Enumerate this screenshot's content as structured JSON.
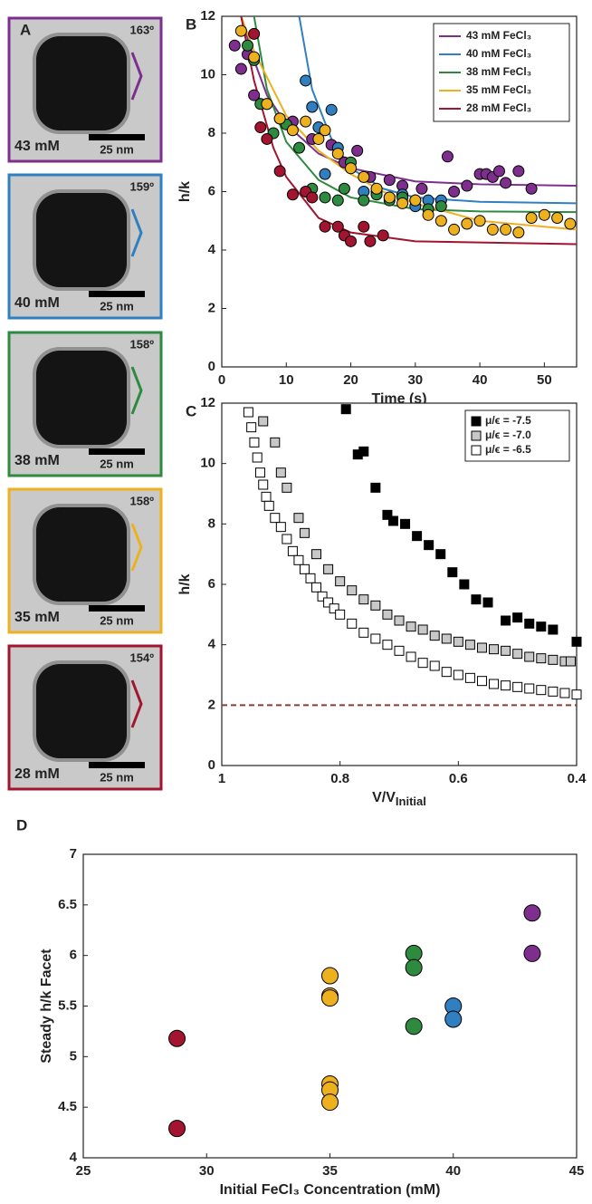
{
  "panel_a": {
    "label": "A",
    "tiles": [
      {
        "concentration": "43 mM",
        "angle": "163º",
        "scale_bar": "25 nm",
        "color": "#7e2f8e"
      },
      {
        "concentration": "40 mM",
        "angle": "159º",
        "scale_bar": "25 nm",
        "color": "#2f7fc1"
      },
      {
        "concentration": "38 mM",
        "angle": "158º",
        "scale_bar": "25 nm",
        "color": "#2d8a3e"
      },
      {
        "concentration": "35 mM",
        "angle": "158º",
        "scale_bar": "25 nm",
        "color": "#edb120"
      },
      {
        "concentration": "28 mM",
        "angle": "154º",
        "scale_bar": "25 nm",
        "color": "#a2142f"
      }
    ]
  },
  "chart_data": [
    {
      "type": "scatter",
      "panel": "B",
      "marker": "circle",
      "xlabel": "Time (s)",
      "ylabel": "h/k",
      "xlim": [
        0,
        55
      ],
      "ylim": [
        0,
        12
      ],
      "xticks": [
        0,
        10,
        20,
        30,
        40,
        50
      ],
      "yticks": [
        0,
        2,
        4,
        6,
        8,
        10,
        12
      ],
      "legend": "upper right",
      "series": [
        {
          "name": "43 mM FeCl₃",
          "color": "#7e2f8e",
          "x": [
            2,
            3,
            4,
            5,
            7,
            9,
            11,
            14,
            17,
            19,
            21,
            23,
            26,
            28,
            31,
            35,
            36,
            38,
            40,
            41,
            42,
            43,
            44,
            46,
            48
          ],
          "values": [
            11,
            10.2,
            10.7,
            9.3,
            9,
            8.5,
            8.4,
            7.8,
            7.6,
            7,
            7.4,
            6.5,
            6.4,
            6.2,
            6.1,
            7.2,
            6,
            6.2,
            6.6,
            6.6,
            6.5,
            6.7,
            6.3,
            6.7,
            6.1
          ],
          "fit": {
            "x": [
              3,
              5,
              7,
              10,
              15,
              20,
              30,
              40,
              55
            ],
            "values": [
              12,
              10.5,
              9.3,
              8.3,
              7.3,
              6.8,
              6.35,
              6.25,
              6.2
            ]
          }
        },
        {
          "name": "40 mM FeCl₃",
          "color": "#2f7fc1",
          "x": [
            13,
            14,
            15,
            16,
            17,
            18,
            20,
            22,
            24,
            26,
            28,
            30,
            32,
            34
          ],
          "values": [
            9.8,
            8.9,
            8.2,
            6.6,
            8.8,
            7.5,
            6.8,
            6,
            6,
            5.8,
            5.9,
            5.5,
            5.7,
            5.7
          ],
          "fit": {
            "x": [
              12,
              14,
              17,
              20,
              25,
              30,
              40,
              55
            ],
            "values": [
              12,
              9.5,
              7.8,
              6.8,
              6.1,
              5.8,
              5.65,
              5.6
            ]
          }
        },
        {
          "name": "38 mM FeCl₃",
          "color": "#2d8a3e",
          "x": [
            4,
            5,
            6,
            8,
            10,
            12,
            14,
            16,
            18,
            19,
            20,
            22,
            24,
            26,
            28,
            30,
            32,
            34
          ],
          "values": [
            11,
            10.5,
            9,
            8,
            8.3,
            7.5,
            6.1,
            5.8,
            5.7,
            6.1,
            7,
            5.7,
            5.9,
            5.7,
            5.8,
            5.7,
            5.4,
            5.5
          ],
          "fit": {
            "x": [
              5,
              7,
              10,
              15,
              20,
              30,
              40,
              55
            ],
            "values": [
              12,
              9.5,
              7.7,
              6.4,
              5.8,
              5.4,
              5.32,
              5.3
            ]
          }
        },
        {
          "name": "35 mM FeCl₃",
          "color": "#edb120",
          "x": [
            3,
            5,
            7,
            9,
            11,
            13,
            15,
            16,
            18,
            20,
            22,
            24,
            26,
            28,
            30,
            32,
            34,
            36,
            38,
            40,
            42,
            44,
            46,
            48,
            50,
            52,
            54
          ],
          "values": [
            11.5,
            10.6,
            9,
            8.5,
            8.1,
            8.4,
            7.8,
            8.1,
            7.3,
            6.8,
            6.5,
            6.1,
            5.8,
            5.6,
            5.7,
            5.2,
            5,
            4.7,
            4.9,
            5,
            4.7,
            4.7,
            4.6,
            5.1,
            5.2,
            5.1,
            4.9
          ],
          "fit": {
            "x": [
              3,
              5,
              10,
              15,
              20,
              25,
              30,
              40,
              55
            ],
            "values": [
              12,
              10.8,
              8.6,
              7.4,
              6.6,
              6,
              5.6,
              5,
              4.7
            ]
          }
        },
        {
          "name": "28 mM FeCl₃",
          "color": "#a2142f",
          "x": [
            5,
            6,
            7,
            9,
            11,
            13,
            14,
            16,
            18,
            19,
            20,
            22,
            23,
            25
          ],
          "values": [
            11.4,
            8.2,
            7.8,
            6.7,
            5.9,
            6,
            5.8,
            4.8,
            4.8,
            4.5,
            4.3,
            4.8,
            4.3,
            4.5
          ],
          "fit": {
            "x": [
              3,
              5,
              8,
              10,
              15,
              20,
              30,
              55
            ],
            "values": [
              12,
              9.8,
              7.5,
              6.5,
              5.1,
              4.6,
              4.3,
              4.2
            ]
          }
        }
      ]
    },
    {
      "type": "scatter",
      "panel": "C",
      "marker": "square",
      "xlabel": "V/V",
      "xlabel_subscript": "Initial",
      "ylabel": "h/k",
      "xlim": [
        1,
        0.4
      ],
      "ylim": [
        0,
        12
      ],
      "xticks": [
        1,
        0.8,
        0.6,
        0.4
      ],
      "yticks": [
        0,
        2,
        4,
        6,
        8,
        10,
        12
      ],
      "legend": "upper right",
      "reference_line": {
        "y": 2,
        "color": "#8b3a3a"
      },
      "series": [
        {
          "name": "μ/ϵ = -7.5",
          "color": "#000000",
          "x": [
            0.79,
            0.77,
            0.76,
            0.74,
            0.72,
            0.71,
            0.69,
            0.67,
            0.65,
            0.63,
            0.61,
            0.59,
            0.57,
            0.55,
            0.52,
            0.5,
            0.48,
            0.46,
            0.44,
            0.4
          ],
          "values": [
            11.8,
            10.3,
            10.4,
            9.2,
            8.3,
            8.1,
            8,
            7.6,
            7.3,
            7,
            6.4,
            6,
            5.5,
            5.4,
            4.8,
            4.9,
            4.7,
            4.6,
            4.5,
            4.1
          ]
        },
        {
          "name": "μ/ϵ = -7.0",
          "color": "#c8c8c8",
          "x": [
            0.93,
            0.91,
            0.9,
            0.89,
            0.87,
            0.86,
            0.84,
            0.82,
            0.8,
            0.78,
            0.76,
            0.74,
            0.72,
            0.7,
            0.68,
            0.66,
            0.64,
            0.62,
            0.6,
            0.58,
            0.56,
            0.54,
            0.52,
            0.5,
            0.48,
            0.46,
            0.44,
            0.42,
            0.41
          ],
          "values": [
            11.4,
            10.7,
            9.7,
            9.2,
            8.2,
            7.7,
            7,
            6.5,
            6.1,
            5.8,
            5.5,
            5.3,
            5,
            4.8,
            4.6,
            4.5,
            4.3,
            4.2,
            4.1,
            4,
            3.9,
            3.85,
            3.8,
            3.7,
            3.6,
            3.55,
            3.5,
            3.45,
            3.45
          ]
        },
        {
          "name": "μ/ϵ = -6.5",
          "color": "#ffffff",
          "x": [
            0.955,
            0.95,
            0.945,
            0.94,
            0.935,
            0.93,
            0.925,
            0.92,
            0.91,
            0.9,
            0.89,
            0.88,
            0.87,
            0.86,
            0.85,
            0.84,
            0.83,
            0.82,
            0.81,
            0.8,
            0.78,
            0.76,
            0.74,
            0.72,
            0.7,
            0.68,
            0.66,
            0.64,
            0.62,
            0.6,
            0.58,
            0.56,
            0.54,
            0.52,
            0.5,
            0.48,
            0.46,
            0.44,
            0.42,
            0.4
          ],
          "values": [
            11.7,
            11.2,
            10.7,
            10.2,
            9.7,
            9.3,
            8.9,
            8.6,
            8.2,
            7.9,
            7.5,
            7.1,
            6.8,
            6.5,
            6.2,
            5.9,
            5.6,
            5.4,
            5.2,
            5,
            4.7,
            4.4,
            4.2,
            4,
            3.8,
            3.6,
            3.4,
            3.3,
            3.1,
            3,
            2.9,
            2.8,
            2.7,
            2.65,
            2.6,
            2.55,
            2.5,
            2.45,
            2.4,
            2.35
          ]
        }
      ]
    },
    {
      "type": "scatter",
      "panel": "D",
      "marker": "circle",
      "xlabel": "Initial FeCl₃ Concentration (mM)",
      "ylabel": "Steady h/k Facet",
      "xlim": [
        25,
        45
      ],
      "ylim": [
        4,
        7
      ],
      "xticks": [
        25,
        30,
        35,
        40,
        45
      ],
      "yticks": [
        4,
        4.5,
        5,
        5.5,
        6,
        6.5,
        7
      ],
      "series": [
        {
          "color": "#a2142f",
          "x": [
            28.8,
            28.8
          ],
          "values": [
            5.18,
            4.29
          ]
        },
        {
          "color": "#edb120",
          "x": [
            35,
            35,
            35,
            35,
            35,
            35
          ],
          "values": [
            5.8,
            5.6,
            5.58,
            4.73,
            4.67,
            4.55
          ]
        },
        {
          "color": "#2d8a3e",
          "x": [
            38.4,
            38.4,
            38.4
          ],
          "values": [
            6.02,
            5.88,
            5.3
          ]
        },
        {
          "color": "#2f7fc1",
          "x": [
            40,
            40
          ],
          "values": [
            5.5,
            5.37
          ]
        },
        {
          "color": "#7e2f8e",
          "x": [
            43.2,
            43.2
          ],
          "values": [
            6.42,
            6.02
          ]
        }
      ]
    }
  ]
}
